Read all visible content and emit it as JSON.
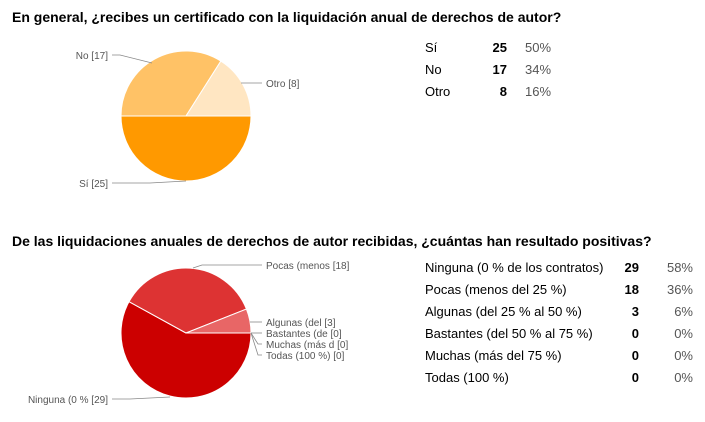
{
  "chart_data": [
    {
      "type": "pie",
      "title": "En general, ¿recibes un certificado con la liquidación anual de derechos de autor?",
      "categories": [
        "Sí",
        "No",
        "Otro"
      ],
      "values": [
        25,
        17,
        8
      ],
      "percentages": [
        "50%",
        "34%",
        "16%"
      ],
      "slice_labels": [
        "Sí [25]",
        "No [17]",
        "Otro [8]"
      ],
      "colors": [
        "#ff9900",
        "#ffc266",
        "#ffe6c2"
      ]
    },
    {
      "type": "pie",
      "title": "De las liquidaciones anuales de derechos de autor recibidas, ¿cuántas han resultado positivas?",
      "categories": [
        "Ninguna (0 % de los contratos)",
        "Pocas (menos del 25 %)",
        "Algunas (del 25 % al 50 %)",
        "Bastantes (del 50 % al 75 %)",
        "Muchas (más del 75 %)",
        "Todas (100 %)"
      ],
      "values": [
        29,
        18,
        3,
        0,
        0,
        0
      ],
      "percentages": [
        "58%",
        "36%",
        "6%",
        "0%",
        "0%",
        "0%"
      ],
      "slice_labels": [
        "Ninguna (0 % [29]",
        "Pocas (menos [18]",
        "Algunas (del  [3]",
        "Bastantes (de [0]",
        "Muchas (más d [0]",
        "Todas (100 %) [0]"
      ],
      "colors": [
        "#cc0000",
        "#dd3333",
        "#e86666",
        "#f09999",
        "#f5bbbb",
        "#fadddd"
      ]
    }
  ]
}
